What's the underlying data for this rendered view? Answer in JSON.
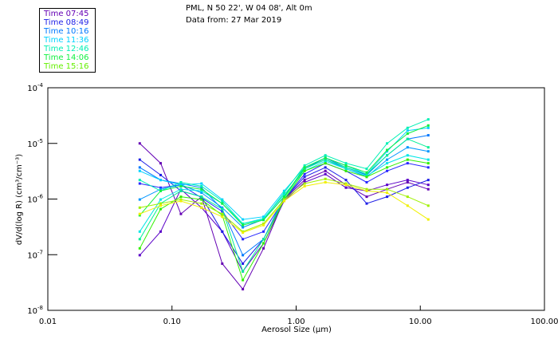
{
  "header": {
    "line1": "PML, N 50 22', W 04 08', Alt 0m",
    "line2": "Data from: 27 Mar 2019"
  },
  "legend": [
    {
      "label": "Time 07:45",
      "color": "#6400b4"
    },
    {
      "label": "Time 08:49",
      "color": "#1e1ee6"
    },
    {
      "label": "Time 10:16",
      "color": "#0078ff"
    },
    {
      "label": "Time 11:36",
      "color": "#00d2ff"
    },
    {
      "label": "Time 12:46",
      "color": "#00f0b4"
    },
    {
      "label": "Time 14:06",
      "color": "#10f040"
    },
    {
      "label": "Time 15:16",
      "color": "#64f000"
    }
  ],
  "chart_data": {
    "type": "line",
    "xscale": "log",
    "yscale": "log",
    "xlim": [
      0.01,
      100
    ],
    "ylim": [
      1e-08,
      0.0001
    ],
    "xlabel": "Aerosol Size (µm)",
    "ylabel": "dV/d(log R)  (cm³/cm⁻³)",
    "xticks": [
      {
        "value": 0.01,
        "label": "0.01"
      },
      {
        "value": 0.1,
        "label": "0.10"
      },
      {
        "value": 1,
        "label": "1.00"
      },
      {
        "value": 10,
        "label": "10.00"
      },
      {
        "value": 100,
        "label": "100.00"
      }
    ],
    "yticks": [
      {
        "value": 0.0001,
        "base": "10",
        "exp": "-4"
      },
      {
        "value": 1e-05,
        "base": "10",
        "exp": "-5"
      },
      {
        "value": 1e-06,
        "base": "10",
        "exp": "-6"
      },
      {
        "value": 1e-07,
        "base": "10",
        "exp": "-7"
      },
      {
        "value": 1e-08,
        "base": "10",
        "exp": "-8"
      }
    ],
    "x": [
      0.055,
      0.081,
      0.118,
      0.173,
      0.254,
      0.372,
      0.546,
      0.8,
      1.17,
      1.72,
      2.52,
      3.7,
      5.4,
      7.9,
      11.6
    ],
    "series": [
      {
        "name": "07:45 a",
        "color": "#6400b4",
        "values": [
          1e-05,
          4.4e-06,
          5.4e-07,
          1.1e-06,
          6.9e-08,
          2.4e-08,
          1.3e-07,
          9.8e-07,
          2.2e-06,
          3.2e-06,
          1.8e-06,
          1.1e-06,
          1.5e-06,
          2e-06,
          1.5e-06
        ]
      },
      {
        "name": "07:45 b",
        "color": "#5a00c8",
        "values": [
          9.8e-08,
          2.6e-07,
          1.5e-06,
          7e-07,
          2.6e-07,
          5e-08,
          1.6e-07,
          9.2e-07,
          2e-06,
          2.8e-06,
          1.6e-06,
          1.4e-06,
          1.8e-06,
          2.2e-06,
          1.8e-06
        ]
      },
      {
        "name": "08:49 a",
        "color": "#1e1ee6",
        "values": [
          5.1e-06,
          2.7e-06,
          1.4e-06,
          1.1e-06,
          2.6e-07,
          6.9e-08,
          1.9e-07,
          9.8e-07,
          2.5e-06,
          3.7e-06,
          2.2e-06,
          8.3e-07,
          1.1e-06,
          1.6e-06,
          2.2e-06
        ]
      },
      {
        "name": "08:49 b",
        "color": "#2828ff",
        "values": [
          1.9e-06,
          1.6e-06,
          1.8e-06,
          1.05e-06,
          6e-07,
          1.9e-07,
          2.6e-07,
          9.8e-07,
          2.8e-06,
          4.4e-06,
          3.2e-06,
          2e-06,
          3.2e-06,
          4.4e-06,
          3.7e-06
        ]
      },
      {
        "name": "10:16 a",
        "color": "#0078ff",
        "values": [
          3.7e-06,
          2.2e-06,
          1.9e-06,
          1.6e-06,
          6.6e-07,
          9.8e-08,
          1.9e-07,
          1.1e-06,
          3.5e-06,
          5.5e-06,
          3.7e-06,
          2.7e-06,
          6.1e-06,
          1.2e-05,
          1.4e-05
        ]
      },
      {
        "name": "10:16 b",
        "color": "#0096ff",
        "values": [
          9.8e-07,
          1.5e-06,
          1.8e-06,
          1.3e-06,
          7e-07,
          3.1e-07,
          4.3e-07,
          1.1e-06,
          3.5e-06,
          5.1e-06,
          3.5e-06,
          2.5e-06,
          5.1e-06,
          8.5e-06,
          7.2e-06
        ]
      },
      {
        "name": "11:36 a",
        "color": "#00d2ff",
        "values": [
          3.2e-06,
          2.2e-06,
          1.8e-06,
          1.9e-06,
          9.8e-07,
          4.3e-07,
          4.8e-07,
          1.4e-06,
          3.7e-06,
          5.5e-06,
          4e-06,
          2.8e-06,
          7.2e-06,
          1.7e-05,
          1.9e-05
        ]
      },
      {
        "name": "11:36 b",
        "color": "#00e6e6",
        "values": [
          2.6e-07,
          9.8e-07,
          1.5e-06,
          1.4e-06,
          8.3e-07,
          3.6e-07,
          4.5e-07,
          1.2e-06,
          3.2e-06,
          4.8e-06,
          3.5e-06,
          2.6e-06,
          4.4e-06,
          6.1e-06,
          5.1e-06
        ]
      },
      {
        "name": "12:46 a",
        "color": "#00f0b4",
        "values": [
          2.2e-06,
          1.4e-06,
          2e-06,
          1.7e-06,
          9.2e-07,
          3.6e-07,
          4.3e-07,
          1.3e-06,
          4e-06,
          6.1e-06,
          4.4e-06,
          3.5e-06,
          1e-05,
          1.9e-05,
          2.7e-05
        ]
      },
      {
        "name": "12:46 b",
        "color": "#00f096",
        "values": [
          1.9e-07,
          8.3e-07,
          1.4e-06,
          1.1e-06,
          6.6e-07,
          5e-08,
          1.9e-07,
          1.05e-06,
          3.5e-06,
          5.1e-06,
          3.7e-06,
          2.8e-06,
          6.1e-06,
          1.2e-05,
          8.5e-06
        ]
      },
      {
        "name": "14:06 a",
        "color": "#10f040",
        "values": [
          5.1e-07,
          1.4e-06,
          1.7e-06,
          1.5e-06,
          8.3e-07,
          3.4e-07,
          4.2e-07,
          1.1e-06,
          3.7e-06,
          5.5e-06,
          4e-06,
          3e-06,
          7.6e-06,
          1.5e-05,
          2.1e-05
        ]
      },
      {
        "name": "14:06 b",
        "color": "#30f000",
        "values": [
          1.3e-07,
          6.6e-07,
          1.1e-06,
          9.8e-07,
          5.1e-07,
          3.5e-08,
          1.6e-07,
          9.8e-07,
          3.2e-06,
          4.4e-06,
          3.2e-06,
          2.5e-06,
          3.7e-06,
          5.1e-06,
          4.4e-06
        ]
      },
      {
        "name": "15:16 a",
        "color": "#a0f000",
        "values": [
          7e-07,
          8.3e-07,
          9.8e-07,
          8.3e-07,
          5.4e-07,
          2.6e-07,
          3.6e-07,
          9.8e-07,
          1.9e-06,
          2.3e-06,
          1.9e-06,
          1.5e-06,
          1.5e-06,
          1.1e-06,
          7.6e-07
        ]
      },
      {
        "name": "15:16 b",
        "color": "#f0f000",
        "values": [
          5.4e-07,
          7.6e-07,
          9.2e-07,
          7e-07,
          4.8e-07,
          2.5e-07,
          3.4e-07,
          9.2e-07,
          1.7e-06,
          2e-06,
          1.8e-06,
          1.4e-06,
          1.3e-06,
          7.6e-07,
          4.3e-07
        ]
      }
    ]
  }
}
